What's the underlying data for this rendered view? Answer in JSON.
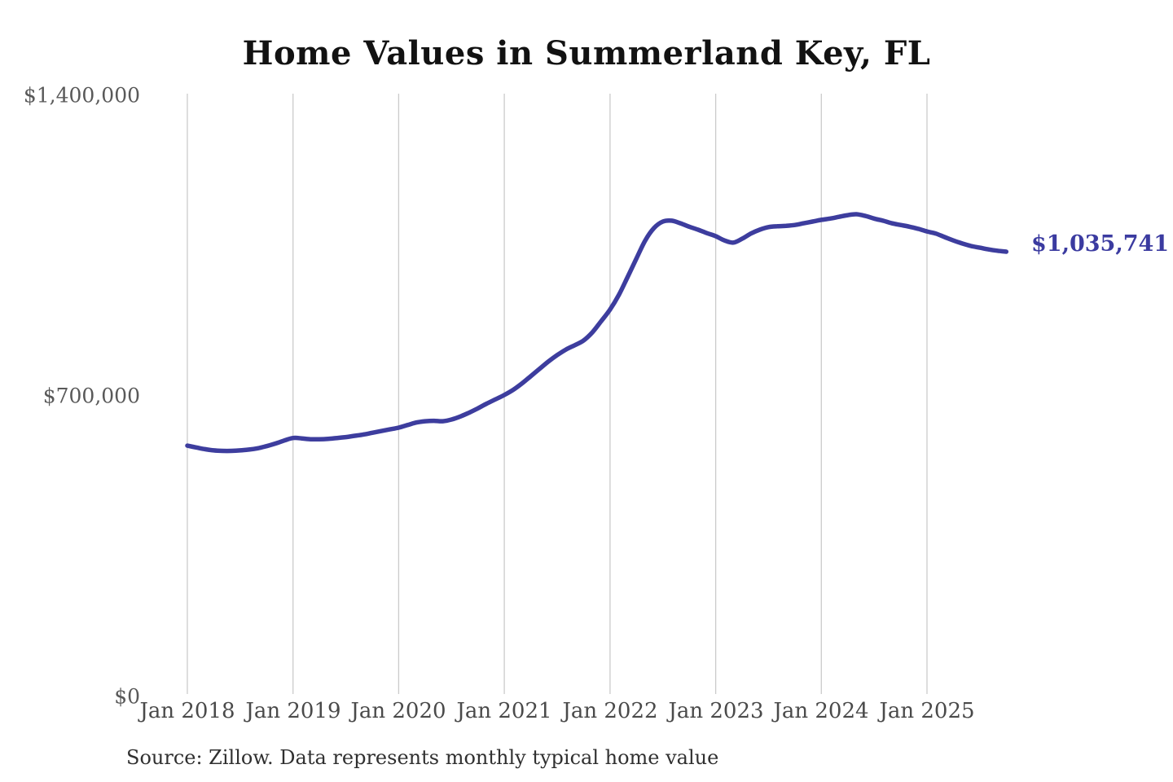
{
  "title": "Home Values in Summerland Key, FL",
  "source_note": "Source: Zillow. Data represents monthly typical home value",
  "colors": {
    "line": "#3d3d9e",
    "end_label": "#3b3ba0",
    "grid": "#cbcbcb",
    "title_text": "#121212",
    "axis_text": "#4a4a4a",
    "source_text": "#303030",
    "background": "#ffffff"
  },
  "chart_data": {
    "type": "line",
    "title": "Home Values in Summerland Key, FL",
    "xlabel": "",
    "ylabel": "",
    "ylim": [
      0,
      1400000
    ],
    "y_tick_labels": [
      "$1,400,000",
      "$700,000",
      "$0"
    ],
    "y_tick_values": [
      1400000,
      700000,
      0
    ],
    "x_tick_labels": [
      "Jan 2018",
      "Jan 2019",
      "Jan 2020",
      "Jan 2021",
      "Jan 2022",
      "Jan 2023",
      "Jan 2024",
      "Jan 2025"
    ],
    "grid": "vertical-gridlines-only",
    "legend": "none",
    "last_value": 1035741,
    "last_value_label": "$1,035,741",
    "series": [
      {
        "name": "Monthly typical home value",
        "x": [
          "2018-01",
          "2018-02",
          "2018-03",
          "2018-04",
          "2018-05",
          "2018-06",
          "2018-07",
          "2018-08",
          "2018-09",
          "2018-10",
          "2018-11",
          "2018-12",
          "2019-01",
          "2019-02",
          "2019-03",
          "2019-04",
          "2019-05",
          "2019-06",
          "2019-07",
          "2019-08",
          "2019-09",
          "2019-10",
          "2019-11",
          "2019-12",
          "2020-01",
          "2020-02",
          "2020-03",
          "2020-04",
          "2020-05",
          "2020-06",
          "2020-07",
          "2020-08",
          "2020-09",
          "2020-10",
          "2020-11",
          "2020-12",
          "2021-01",
          "2021-02",
          "2021-03",
          "2021-04",
          "2021-05",
          "2021-06",
          "2021-07",
          "2021-08",
          "2021-09",
          "2021-10",
          "2021-11",
          "2021-12",
          "2022-01",
          "2022-02",
          "2022-03",
          "2022-04",
          "2022-05",
          "2022-06",
          "2022-07",
          "2022-08",
          "2022-09",
          "2022-10",
          "2022-11",
          "2022-12",
          "2023-01",
          "2023-02",
          "2023-03",
          "2023-04",
          "2023-05",
          "2023-06",
          "2023-07",
          "2023-08",
          "2023-09",
          "2023-10",
          "2023-11",
          "2023-12",
          "2024-01",
          "2024-02",
          "2024-03",
          "2024-04",
          "2024-05",
          "2024-06",
          "2024-07",
          "2024-08",
          "2024-09",
          "2024-10",
          "2024-11",
          "2024-12",
          "2025-01",
          "2025-02",
          "2025-03",
          "2025-04",
          "2025-05",
          "2025-06",
          "2025-07",
          "2025-08",
          "2025-09",
          "2025-10"
        ],
        "values": [
          584000,
          580000,
          576000,
          573000,
          572000,
          572000,
          573000,
          575000,
          578000,
          583000,
          589000,
          596000,
          602000,
          601000,
          599000,
          599000,
          600000,
          602000,
          604000,
          607000,
          610000,
          614000,
          618000,
          622000,
          626000,
          632000,
          638000,
          641000,
          642000,
          641000,
          645000,
          652000,
          661000,
          671000,
          682000,
          692000,
          702000,
          714000,
          729000,
          746000,
          763000,
          780000,
          795000,
          808000,
          818000,
          829000,
          848000,
          874000,
          901000,
          935000,
          977000,
          1020000,
          1062000,
          1091000,
          1106000,
          1108000,
          1102000,
          1094000,
          1087000,
          1079000,
          1072000,
          1062000,
          1057000,
          1066000,
          1078000,
          1087000,
          1093000,
          1095000,
          1096000,
          1098000,
          1102000,
          1106000,
          1110000,
          1113000,
          1117000,
          1121000,
          1123000,
          1119000,
          1113000,
          1108000,
          1102000,
          1098000,
          1094000,
          1089000,
          1083000,
          1078000,
          1070000,
          1062000,
          1055000,
          1049000,
          1045000,
          1041000,
          1038000,
          1035741
        ]
      }
    ]
  }
}
